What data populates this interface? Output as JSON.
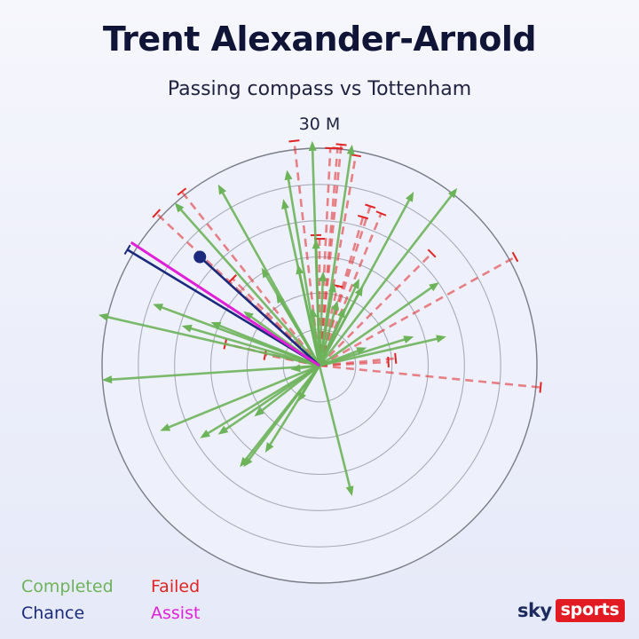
{
  "title": "Trent Alexander-Arnold",
  "subtitle": "Passing compass vs Tottenham",
  "chart_data": {
    "type": "scatter",
    "scale_label": "30 M",
    "grid": true,
    "max_radius_m": 60,
    "ring_interval_m": 10,
    "legend": [
      {
        "label": "Completed",
        "color": "#6db35a"
      },
      {
        "label": "Failed",
        "color": "#e02424"
      },
      {
        "label": "Chance",
        "color": "#1b2a7c"
      },
      {
        "label": "Assist",
        "color": "#e020d8"
      }
    ],
    "series": [
      {
        "name": "Completed",
        "color": "#6db35a",
        "points_xy_m": [
          [
            -60,
            -4
          ],
          [
            -61,
            14
          ],
          [
            -46,
            17
          ],
          [
            -38,
            11
          ],
          [
            -30,
            12
          ],
          [
            -21,
            15
          ],
          [
            -8,
            -1
          ],
          [
            -44,
            -18
          ],
          [
            -33,
            -20
          ],
          [
            -18,
            -14
          ],
          [
            -22,
            -28
          ],
          [
            -15,
            -24
          ],
          [
            -28,
            -19
          ],
          [
            -6,
            -10
          ],
          [
            9,
            -36
          ],
          [
            -21,
            -28
          ],
          [
            9,
            61
          ],
          [
            -9,
            54
          ],
          [
            -28,
            50
          ],
          [
            -40,
            45
          ],
          [
            -16,
            27
          ],
          [
            -12,
            20
          ],
          [
            -6,
            28
          ],
          [
            -2,
            16
          ],
          [
            1,
            26
          ],
          [
            4,
            23
          ],
          [
            7,
            16
          ],
          [
            12,
            22
          ],
          [
            11,
            24
          ],
          [
            33,
            23
          ],
          [
            35,
            8
          ],
          [
            26,
            8
          ],
          [
            13,
            5
          ],
          [
            38,
            49
          ],
          [
            26,
            48
          ],
          [
            -2,
            62
          ],
          [
            -10,
            46
          ],
          [
            -1,
            35
          ],
          [
            5,
            18
          ]
        ]
      },
      {
        "name": "Failed",
        "color": "#e02424",
        "points_xy_m": [
          [
            -45,
            42
          ],
          [
            -38,
            48
          ],
          [
            -24,
            24
          ],
          [
            -26,
            6
          ],
          [
            -15,
            3
          ],
          [
            -7,
            62
          ],
          [
            3,
            60
          ],
          [
            5,
            60
          ],
          [
            6,
            61
          ],
          [
            10,
            58
          ],
          [
            -1,
            36
          ],
          [
            0,
            35
          ],
          [
            5,
            22
          ],
          [
            17,
            42
          ],
          [
            12,
            41
          ],
          [
            14,
            44
          ],
          [
            31,
            31
          ],
          [
            54,
            30
          ],
          [
            61,
            -6
          ],
          [
            21,
            2
          ],
          [
            19,
            1
          ]
        ]
      },
      {
        "name": "Chance",
        "color": "#1b2a7c",
        "points_xy_m": [
          [
            -53,
            32
          ],
          [
            -33,
            30
          ]
        ]
      },
      {
        "name": "Assist",
        "color": "#e020d8",
        "points_xy_m": [
          [
            -52,
            34
          ]
        ]
      }
    ]
  },
  "logo": {
    "sky": "sky",
    "sports": "sports"
  }
}
